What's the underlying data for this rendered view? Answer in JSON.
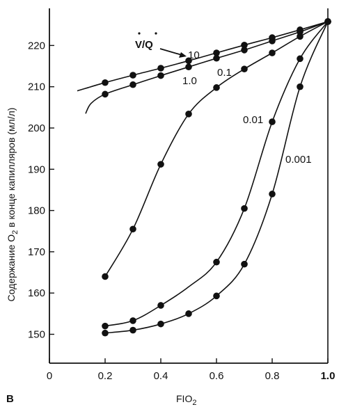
{
  "chart_data": {
    "type": "line",
    "panel_label": "В",
    "xlabel": "FIO",
    "xlabel_sub": "2",
    "ylabel": "Содержание  O",
    "ylabel_sub": "2",
    "ylabel_rest": "  в конце капилляров (мл/л)",
    "xlim": [
      0,
      1.0
    ],
    "ylim": [
      143,
      229
    ],
    "xticks": [
      0,
      0.2,
      0.4,
      0.6,
      0.8,
      1.0
    ],
    "xtick_labels": [
      "0",
      "0.2",
      "0.4",
      "0.6",
      "0.8",
      "1.0"
    ],
    "yticks": [
      150,
      160,
      170,
      180,
      190,
      200,
      210,
      220
    ],
    "ytick_labels": [
      "150",
      "160",
      "170",
      "180",
      "190",
      "200",
      "210",
      "220"
    ],
    "ratio_label": "V/Q",
    "series": [
      {
        "name": "10",
        "x": [
          0.1,
          0.2,
          0.3,
          0.4,
          0.5,
          0.6,
          0.7,
          0.8,
          0.9,
          1.0
        ],
        "y": [
          209,
          211,
          212.8,
          214.5,
          216.3,
          218.2,
          220.1,
          221.9,
          223.8,
          225.8
        ],
        "points": [
          [
            0.2,
            211
          ],
          [
            0.3,
            212.8
          ],
          [
            0.4,
            214.5
          ],
          [
            0.5,
            216.3
          ],
          [
            0.6,
            218.2
          ],
          [
            0.7,
            220.1
          ],
          [
            0.8,
            221.9
          ],
          [
            0.9,
            223.8
          ],
          [
            1.0,
            225.8
          ]
        ]
      },
      {
        "name": "1.0",
        "x": [
          0.13,
          0.15,
          0.2,
          0.3,
          0.4,
          0.5,
          0.6,
          0.7,
          0.8,
          0.9,
          1.0
        ],
        "y": [
          203.5,
          206,
          208.2,
          210.5,
          212.7,
          214.8,
          216.9,
          218.9,
          221.1,
          223.3,
          225.8
        ],
        "points": [
          [
            0.2,
            208.2
          ],
          [
            0.3,
            210.5
          ],
          [
            0.4,
            212.7
          ],
          [
            0.5,
            214.8
          ],
          [
            0.6,
            216.9
          ],
          [
            0.7,
            218.9
          ],
          [
            0.8,
            221.1
          ],
          [
            0.9,
            223.3
          ],
          [
            1.0,
            225.8
          ]
        ]
      },
      {
        "name": "0.1",
        "x": [
          0.2,
          0.3,
          0.4,
          0.5,
          0.6,
          0.7,
          0.8,
          0.9,
          1.0
        ],
        "y": [
          164,
          175.5,
          191.2,
          203.4,
          209.8,
          214.3,
          218.2,
          222.2,
          225.8
        ],
        "points": [
          [
            0.2,
            164
          ],
          [
            0.3,
            175.5
          ],
          [
            0.4,
            191.2
          ],
          [
            0.5,
            203.4
          ],
          [
            0.6,
            209.8
          ],
          [
            0.7,
            214.3
          ],
          [
            0.8,
            218.2
          ],
          [
            0.9,
            222.2
          ],
          [
            1.0,
            225.8
          ]
        ]
      },
      {
        "name": "0.01",
        "x": [
          0.2,
          0.3,
          0.4,
          0.5,
          0.6,
          0.7,
          0.8,
          0.9,
          1.0
        ],
        "y": [
          152,
          153.3,
          157,
          161.5,
          167.5,
          180.5,
          201.5,
          216.8,
          225.8
        ],
        "points": [
          [
            0.2,
            152
          ],
          [
            0.3,
            153.3
          ],
          [
            0.4,
            157
          ],
          [
            0.6,
            167.5
          ],
          [
            0.7,
            180.5
          ],
          [
            0.8,
            201.5
          ],
          [
            0.9,
            216.8
          ],
          [
            1.0,
            225.8
          ]
        ]
      },
      {
        "name": "0.001",
        "x": [
          0.2,
          0.3,
          0.4,
          0.5,
          0.6,
          0.7,
          0.8,
          0.9,
          1.0
        ],
        "y": [
          150.3,
          151,
          152.5,
          155,
          159.3,
          167,
          184,
          210,
          225.8
        ],
        "points": [
          [
            0.2,
            150.3
          ],
          [
            0.3,
            151
          ],
          [
            0.4,
            152.5
          ],
          [
            0.5,
            155
          ],
          [
            0.6,
            159.3
          ],
          [
            0.7,
            167
          ],
          [
            0.8,
            184
          ],
          [
            0.9,
            210
          ],
          [
            1.0,
            225.8
          ]
        ]
      }
    ],
    "grid": false,
    "legend": "inline labels"
  }
}
